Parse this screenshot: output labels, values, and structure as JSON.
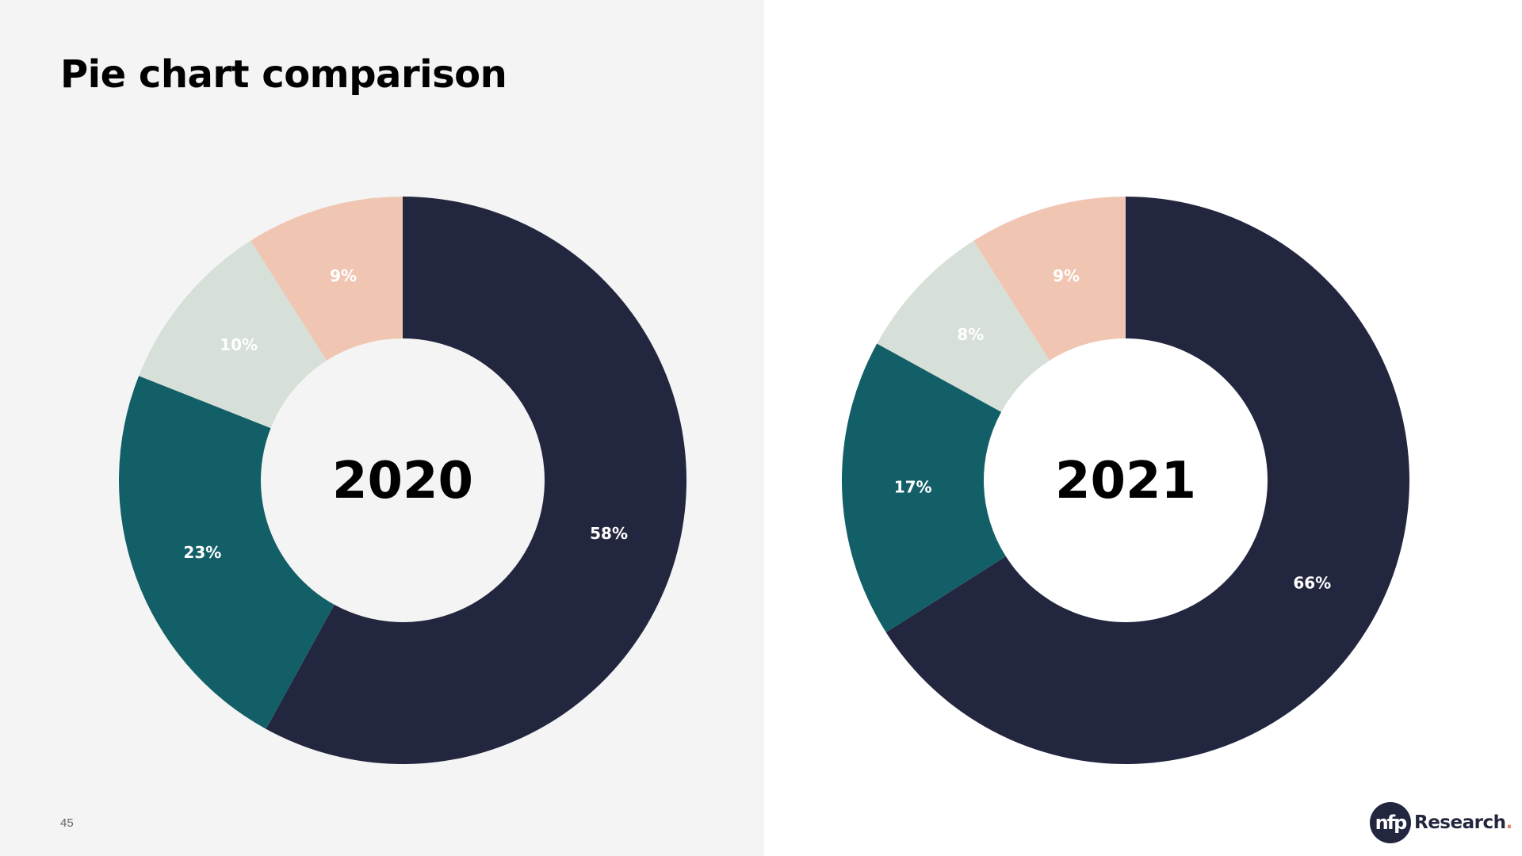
{
  "slide": {
    "title": "Pie chart comparison",
    "page_number": "45",
    "logo": {
      "mark": "nfp",
      "text": "Research",
      "dot": "."
    }
  },
  "colors": {
    "navy": "#23263f",
    "teal": "#135f67",
    "sage": "#d6dfd8",
    "peach": "#f0c6b3"
  },
  "chart_data": [
    {
      "type": "pie",
      "center_label": "2020",
      "slices": [
        {
          "value": 58,
          "label": "58%",
          "color": "#23263f"
        },
        {
          "value": 23,
          "label": "23%",
          "color": "#135f67"
        },
        {
          "value": 10,
          "label": "10%",
          "color": "#d6dfd8"
        },
        {
          "value": 9,
          "label": "9%",
          "color": "#f0c6b3"
        }
      ]
    },
    {
      "type": "pie",
      "center_label": "2021",
      "slices": [
        {
          "value": 66,
          "label": "66%",
          "color": "#23263f"
        },
        {
          "value": 17,
          "label": "17%",
          "color": "#135f67"
        },
        {
          "value": 8,
          "label": "8%",
          "color": "#d6dfd8"
        },
        {
          "value": 9,
          "label": "9%",
          "color": "#f0c6b3"
        }
      ]
    }
  ]
}
